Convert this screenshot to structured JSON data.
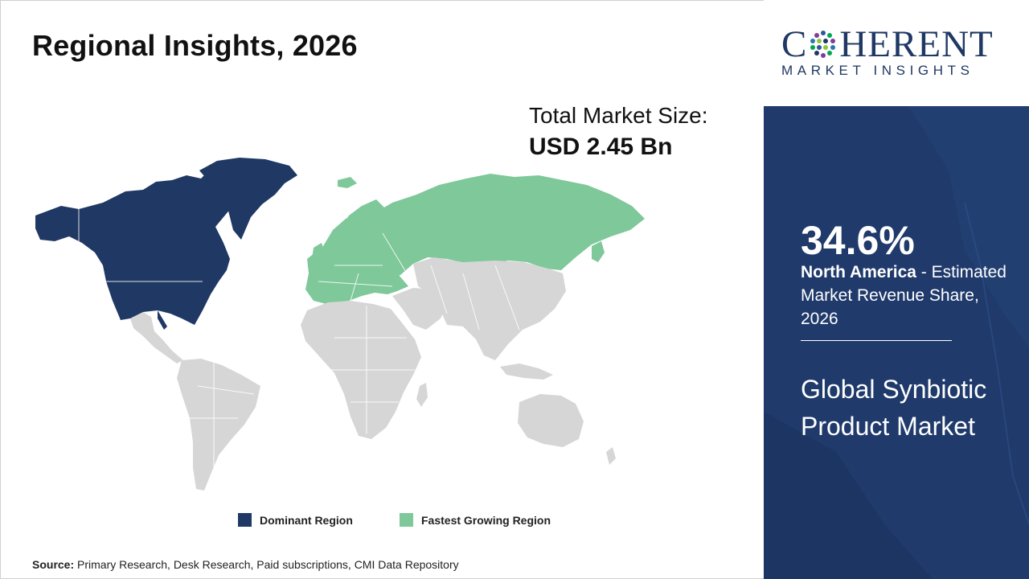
{
  "page_title": "Regional Insights, 2026",
  "total_market": {
    "label": "Total Market Size:",
    "value": "USD 2.45 Bn"
  },
  "legend": [
    {
      "label": "Dominant Region",
      "color": "#1f3864"
    },
    {
      "label": "Fastest Growing Region",
      "color": "#7ec89a"
    }
  ],
  "map": {
    "default_color": "#d6d6d6",
    "dominant_regions": [
      "North America",
      "Greenland"
    ],
    "fastest_growing_regions": [
      "Europe",
      "Russia"
    ]
  },
  "source": {
    "label": "Source:",
    "text": "Primary Research, Desk Research, Paid subscriptions, CMI Data Repository"
  },
  "brand": {
    "name_left": "C",
    "name_right": "HERENT",
    "tagline": "MARKET INSIGHTS",
    "color": "#1f3864"
  },
  "highlight": {
    "share": "34.6%",
    "region": "North America",
    "description": " - Estimated Market Revenue Share, 2026",
    "panel_color": "#1f3a6b"
  },
  "market_name": "Global Synbiotic Product Market"
}
